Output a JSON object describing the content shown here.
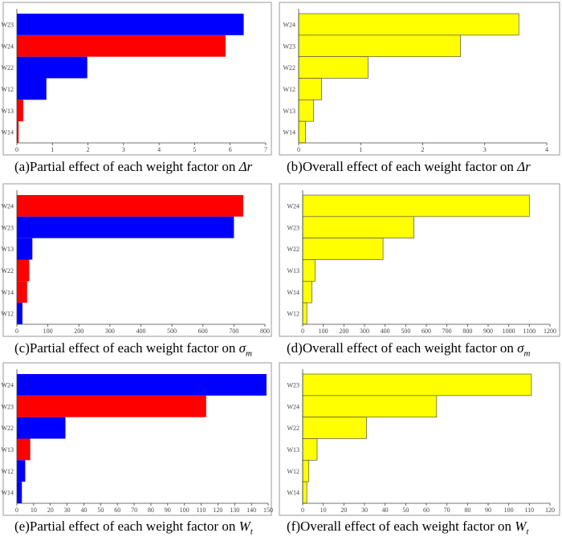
{
  "chart_data": [
    {
      "id": "a",
      "type": "bar",
      "orientation": "horizontal",
      "categories": [
        "W23",
        "W24",
        "W22",
        "W12",
        "W13",
        "W14"
      ],
      "values": [
        6.38,
        5.87,
        1.98,
        0.83,
        0.18,
        0.05
      ],
      "colors": [
        "#0000ff",
        "#ff0000",
        "#0000ff",
        "#0000ff",
        "#ff0000",
        "#ff0000"
      ],
      "xlim": [
        0,
        7
      ],
      "xticks": [
        0,
        1,
        2,
        3,
        4,
        5,
        6,
        7
      ],
      "caption_text": "(a)Partial effect of each weight factor on ",
      "caption_symbol": "Δr",
      "caption_sub": ""
    },
    {
      "id": "b",
      "type": "bar",
      "orientation": "horizontal",
      "categories": [
        "W24",
        "W23",
        "W22",
        "W12",
        "W13",
        "W14"
      ],
      "values": [
        3.55,
        2.61,
        1.12,
        0.37,
        0.24,
        0.11
      ],
      "colors": [
        "#ffff00",
        "#ffff00",
        "#ffff00",
        "#ffff00",
        "#ffff00",
        "#ffff00"
      ],
      "xlim": [
        0,
        4
      ],
      "xticks": [
        0,
        1,
        2,
        3,
        4
      ],
      "caption_text": "(b)Overall effect of each weight factor on ",
      "caption_symbol": "Δr",
      "caption_sub": ""
    },
    {
      "id": "c",
      "type": "bar",
      "orientation": "horizontal",
      "categories": [
        "W24",
        "W23",
        "W13",
        "W22",
        "W14",
        "W12"
      ],
      "values": [
        730,
        700,
        50,
        40,
        33,
        18
      ],
      "colors": [
        "#ff0000",
        "#0000ff",
        "#0000ff",
        "#ff0000",
        "#ff0000",
        "#0000ff"
      ],
      "xlim": [
        0,
        800
      ],
      "xticks": [
        0,
        100,
        200,
        300,
        400,
        500,
        600,
        700,
        800
      ],
      "caption_text": "(c)Partial effect of each weight factor on ",
      "caption_symbol": "σ",
      "caption_sub": "m"
    },
    {
      "id": "d",
      "type": "bar",
      "orientation": "horizontal",
      "categories": [
        "W24",
        "W23",
        "W22",
        "W13",
        "W14",
        "W12"
      ],
      "values": [
        1100,
        540,
        390,
        60,
        45,
        20
      ],
      "colors": [
        "#ffff00",
        "#ffff00",
        "#ffff00",
        "#ffff00",
        "#ffff00",
        "#ffff00"
      ],
      "xlim": [
        0,
        1200
      ],
      "xticks": [
        0,
        100,
        200,
        300,
        400,
        500,
        600,
        700,
        800,
        900,
        1000,
        1100,
        1200
      ],
      "caption_text": "(d)Overall effect of each weight factor on ",
      "caption_symbol": "σ",
      "caption_sub": "m"
    },
    {
      "id": "e",
      "type": "bar",
      "orientation": "horizontal",
      "categories": [
        "W24",
        "W23",
        "W22",
        "W13",
        "W12",
        "W14"
      ],
      "values": [
        149,
        113,
        29,
        8,
        5,
        3
      ],
      "colors": [
        "#0000ff",
        "#ff0000",
        "#0000ff",
        "#ff0000",
        "#0000ff",
        "#0000ff"
      ],
      "xlim": [
        0,
        150
      ],
      "xticks": [
        0,
        10,
        20,
        30,
        40,
        50,
        60,
        70,
        80,
        90,
        100,
        110,
        120,
        130,
        140,
        150
      ],
      "caption_text": "(e)Partial effect of each weight factor on ",
      "caption_symbol": "W",
      "caption_sub": "t"
    },
    {
      "id": "f",
      "type": "bar",
      "orientation": "horizontal",
      "categories": [
        "W23",
        "W24",
        "W22",
        "W13",
        "W12",
        "W14"
      ],
      "values": [
        111,
        65,
        31,
        7,
        3,
        2
      ],
      "colors": [
        "#ffff00",
        "#ffff00",
        "#ffff00",
        "#ffff00",
        "#ffff00",
        "#ffff00"
      ],
      "xlim": [
        0,
        120
      ],
      "xticks": [
        0,
        10,
        20,
        30,
        40,
        50,
        60,
        70,
        80,
        90,
        100,
        110,
        120
      ],
      "caption_text": "(f)Overall effect of each weight factor on ",
      "caption_symbol": "W",
      "caption_sub": "t"
    }
  ]
}
